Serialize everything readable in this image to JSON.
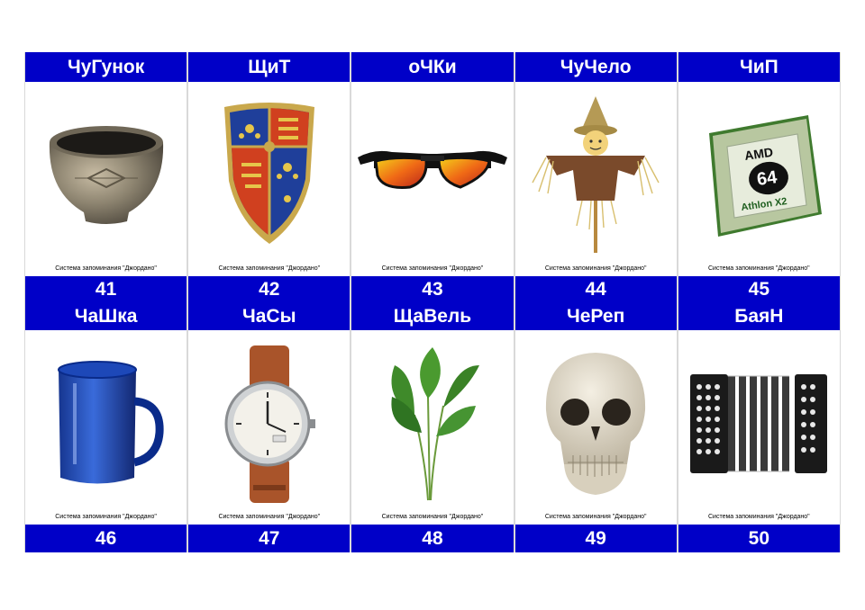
{
  "caption": "Система запоминания \"Джордано\"",
  "cards": [
    {
      "word": "ЧуГунок",
      "number": "41"
    },
    {
      "word": "ЩиТ",
      "number": "42"
    },
    {
      "word": "оЧКи",
      "number": "43"
    },
    {
      "word": "ЧуЧело",
      "number": "44"
    },
    {
      "word": "ЧиП",
      "number": "45"
    },
    {
      "word": "ЧаШка",
      "number": "46"
    },
    {
      "word": "ЧаСы",
      "number": "47"
    },
    {
      "word": "ЩаВель",
      "number": "48"
    },
    {
      "word": "ЧеРеп",
      "number": "49"
    },
    {
      "word": "БаяН",
      "number": "50"
    }
  ],
  "chip_logo": {
    "brand": "AMD",
    "model": "64",
    "line": "Athlon X2"
  },
  "colors": {
    "band": "#0000c8",
    "band_text": "#ffffff"
  }
}
